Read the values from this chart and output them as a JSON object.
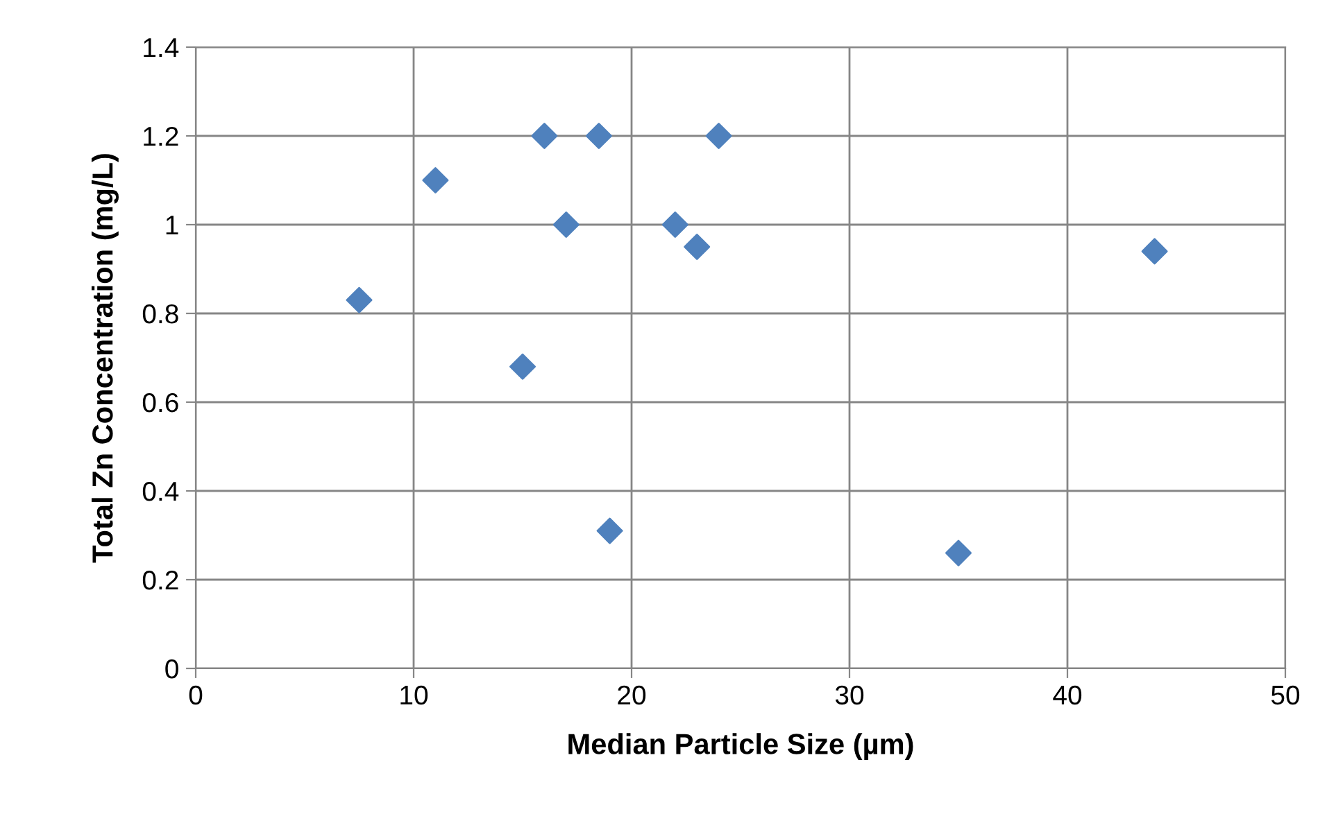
{
  "chart_data": {
    "type": "scatter",
    "xlabel": "Median Particle Size (µm)",
    "ylabel": "Total Zn Concentration (mg/L)",
    "x": [
      7.5,
      11,
      15,
      16,
      17,
      18.5,
      19,
      22,
      23,
      24,
      35,
      44
    ],
    "series": [
      {
        "color": "#4f81bd",
        "values": [
          0.83,
          1.1,
          0.68,
          1.2,
          1.0,
          1.2,
          0.31,
          1.0,
          0.95,
          1.2,
          0.26,
          0.94
        ]
      }
    ],
    "xlim": [
      0,
      50
    ],
    "xticks": [
      0,
      10,
      20,
      30,
      40,
      50
    ],
    "ylim": [
      0,
      1.4
    ],
    "yticks": [
      {
        "value": 0,
        "label": "0"
      },
      {
        "value": 0.2,
        "label": "0.2"
      },
      {
        "value": 0.4,
        "label": "0.4"
      },
      {
        "value": 0.6,
        "label": "0.6"
      },
      {
        "value": 0.8,
        "label": "0.8"
      },
      {
        "value": 1.0,
        "label": "1"
      },
      {
        "value": 1.2,
        "label": "1.2"
      },
      {
        "value": 1.4,
        "label": "1.4"
      }
    ],
    "grid": true,
    "marker": "diamond",
    "legend": false
  }
}
